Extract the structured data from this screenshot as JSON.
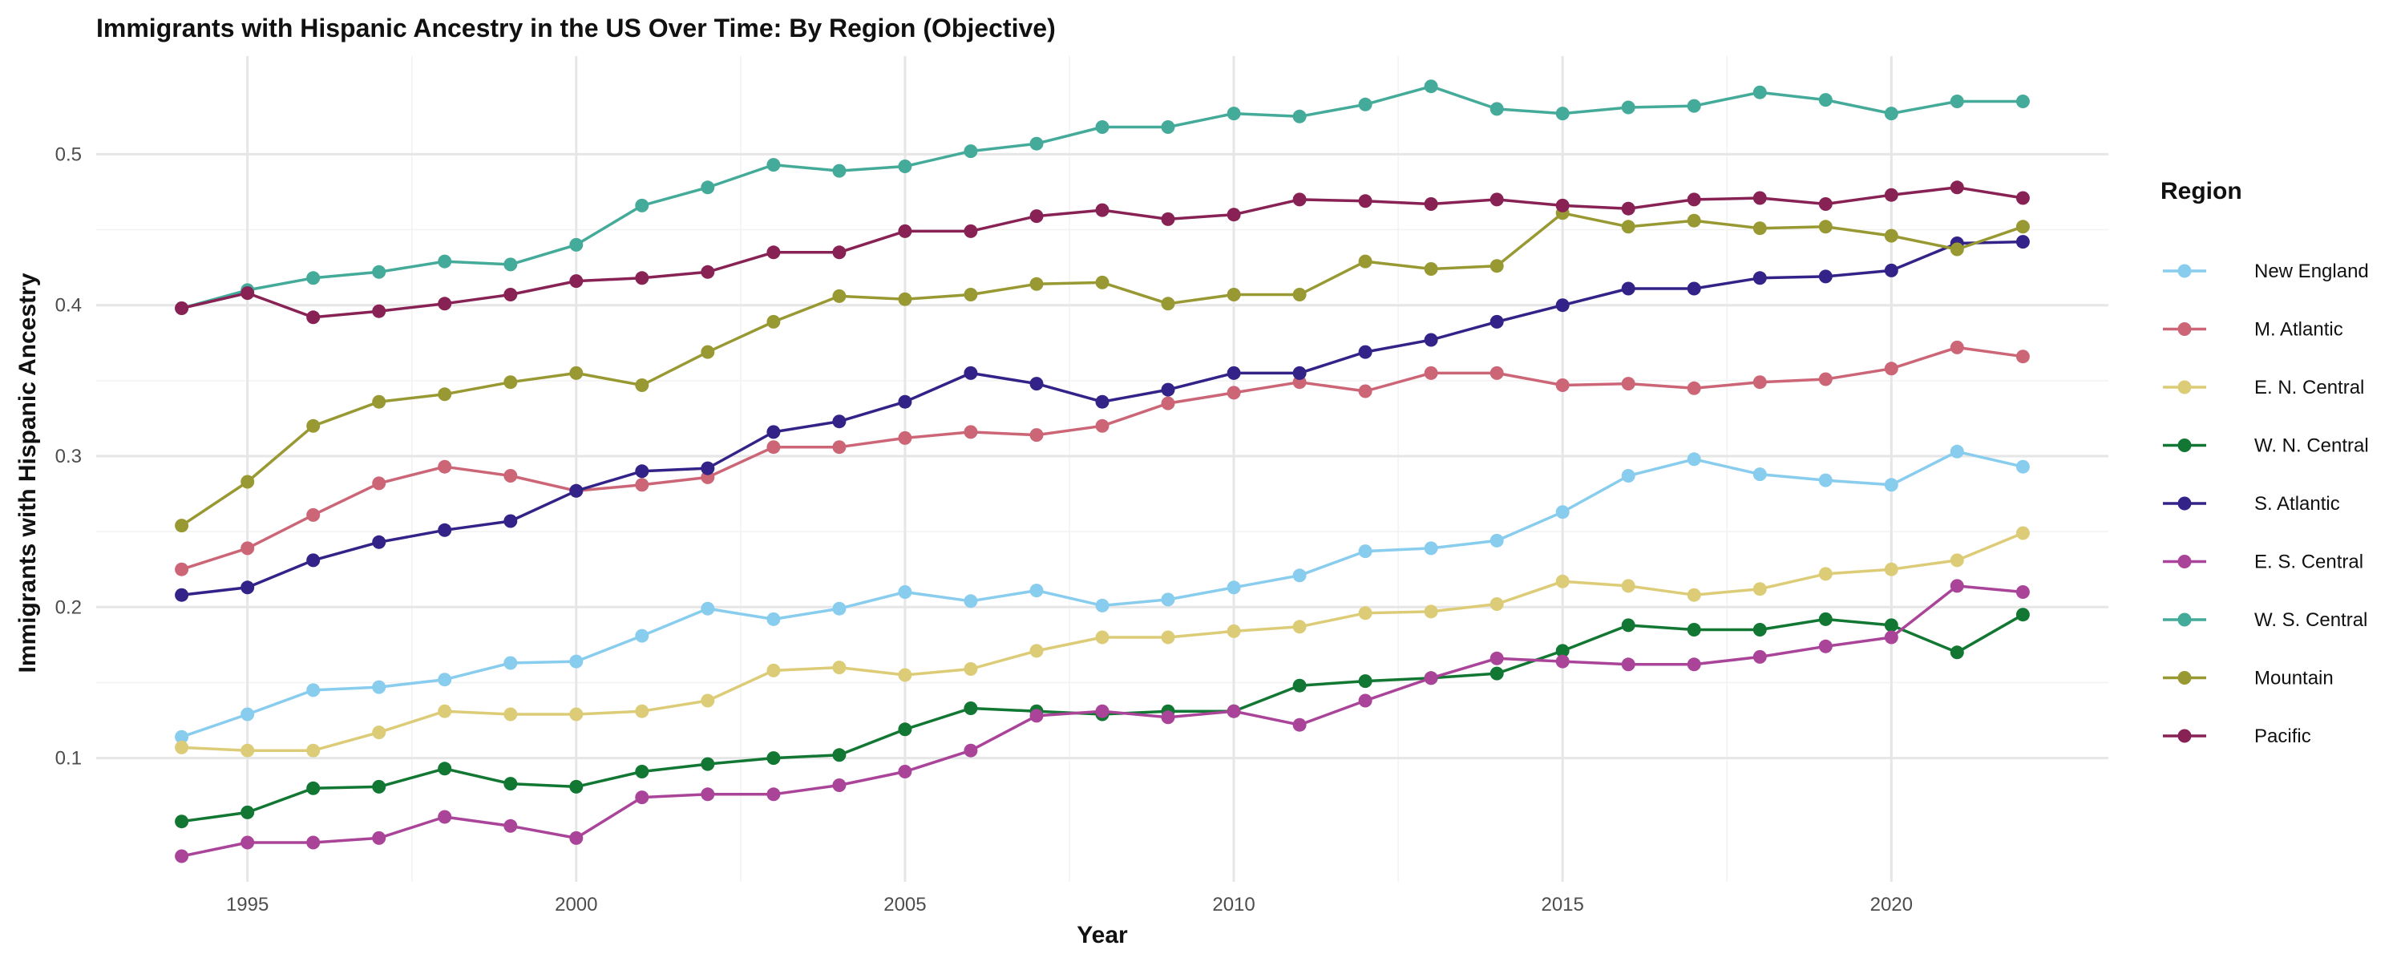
{
  "chart_data": {
    "type": "line",
    "title": "Immigrants with Hispanic Ancestry in the US Over Time: By Region (Objective)",
    "xlabel": "Year",
    "ylabel": "Immigrants with Hispanic Ancestry",
    "xlim": [
      1992.7,
      2023.3
    ],
    "ylim": [
      0.018,
      0.565
    ],
    "x_ticks": [
      1995,
      2000,
      2005,
      2010,
      2015,
      2020
    ],
    "y_ticks": [
      0.1,
      0.2,
      0.3,
      0.4,
      0.5
    ],
    "y_tick_labels": [
      "0.1",
      "0.2",
      "0.3",
      "0.4",
      "0.5"
    ],
    "grid": true,
    "legend": {
      "title": "Region",
      "position": "right"
    },
    "x": [
      1994,
      1995,
      1996,
      1997,
      1998,
      1999,
      2000,
      2001,
      2002,
      2003,
      2004,
      2005,
      2006,
      2007,
      2008,
      2009,
      2010,
      2011,
      2012,
      2013,
      2014,
      2015,
      2016,
      2017,
      2018,
      2019,
      2020,
      2021,
      2022
    ],
    "series": [
      {
        "name": "New England",
        "color": "#88CCEE",
        "values": [
          0.114,
          0.129,
          0.145,
          0.147,
          0.152,
          0.163,
          0.164,
          0.181,
          0.199,
          0.192,
          0.199,
          0.21,
          0.204,
          0.211,
          0.201,
          0.205,
          0.213,
          0.221,
          0.237,
          0.239,
          0.244,
          0.263,
          0.287,
          0.298,
          0.288,
          0.284,
          0.281,
          0.303,
          0.293
        ]
      },
      {
        "name": "M. Atlantic",
        "color": "#CC6677",
        "values": [
          0.225,
          0.239,
          0.261,
          0.282,
          0.293,
          0.287,
          0.277,
          0.281,
          0.286,
          0.306,
          0.306,
          0.312,
          0.316,
          0.314,
          0.32,
          0.335,
          0.342,
          0.349,
          0.343,
          0.355,
          0.355,
          0.347,
          0.348,
          0.345,
          0.349,
          0.351,
          0.358,
          0.372,
          0.366
        ]
      },
      {
        "name": "E. N. Central",
        "color": "#DDCC77",
        "values": [
          0.107,
          0.105,
          0.105,
          0.117,
          0.131,
          0.129,
          0.129,
          0.131,
          0.138,
          0.158,
          0.16,
          0.155,
          0.159,
          0.171,
          0.18,
          0.18,
          0.184,
          0.187,
          0.196,
          0.197,
          0.202,
          0.217,
          0.214,
          0.208,
          0.212,
          0.222,
          0.225,
          0.231,
          0.249
        ]
      },
      {
        "name": "W. N. Central",
        "color": "#117733",
        "values": [
          0.058,
          0.064,
          0.08,
          0.081,
          0.093,
          0.083,
          0.081,
          0.091,
          0.096,
          0.1,
          0.102,
          0.119,
          0.133,
          0.131,
          0.129,
          0.131,
          0.131,
          0.148,
          0.151,
          0.153,
          0.156,
          0.171,
          0.188,
          0.185,
          0.185,
          0.192,
          0.188,
          0.17,
          0.195
        ]
      },
      {
        "name": "S. Atlantic",
        "color": "#332288",
        "values": [
          0.208,
          0.213,
          0.231,
          0.243,
          0.251,
          0.257,
          0.277,
          0.29,
          0.292,
          0.316,
          0.323,
          0.336,
          0.355,
          0.348,
          0.336,
          0.344,
          0.355,
          0.355,
          0.369,
          0.377,
          0.389,
          0.4,
          0.411,
          0.411,
          0.418,
          0.419,
          0.423,
          0.441,
          0.442
        ]
      },
      {
        "name": "E. S. Central",
        "color": "#AA4499",
        "values": [
          0.035,
          0.044,
          0.044,
          0.047,
          0.061,
          0.055,
          0.047,
          0.074,
          0.076,
          0.076,
          0.082,
          0.091,
          0.105,
          0.128,
          0.131,
          0.127,
          0.131,
          0.122,
          0.138,
          0.153,
          0.166,
          0.164,
          0.162,
          0.162,
          0.167,
          0.174,
          0.18,
          0.214,
          0.21
        ]
      },
      {
        "name": "W. S. Central",
        "color": "#44AA99",
        "values": [
          0.398,
          0.41,
          0.418,
          0.422,
          0.429,
          0.427,
          0.44,
          0.466,
          0.478,
          0.493,
          0.489,
          0.492,
          0.502,
          0.507,
          0.518,
          0.518,
          0.527,
          0.525,
          0.533,
          0.545,
          0.53,
          0.527,
          0.531,
          0.532,
          0.541,
          0.536,
          0.527,
          0.535,
          0.535
        ]
      },
      {
        "name": "Mountain",
        "color": "#999933",
        "values": [
          0.254,
          0.283,
          0.32,
          0.336,
          0.341,
          0.349,
          0.355,
          0.347,
          0.369,
          0.389,
          0.406,
          0.404,
          0.407,
          0.414,
          0.415,
          0.401,
          0.407,
          0.407,
          0.429,
          0.424,
          0.426,
          0.461,
          0.452,
          0.456,
          0.451,
          0.452,
          0.446,
          0.437,
          0.452
        ]
      },
      {
        "name": "Pacific",
        "color": "#882255",
        "values": [
          0.398,
          0.408,
          0.392,
          0.396,
          0.401,
          0.407,
          0.416,
          0.418,
          0.422,
          0.435,
          0.435,
          0.449,
          0.449,
          0.459,
          0.463,
          0.457,
          0.46,
          0.47,
          0.469,
          0.467,
          0.47,
          0.466,
          0.464,
          0.47,
          0.471,
          0.467,
          0.473,
          0.478,
          0.471
        ]
      }
    ]
  }
}
